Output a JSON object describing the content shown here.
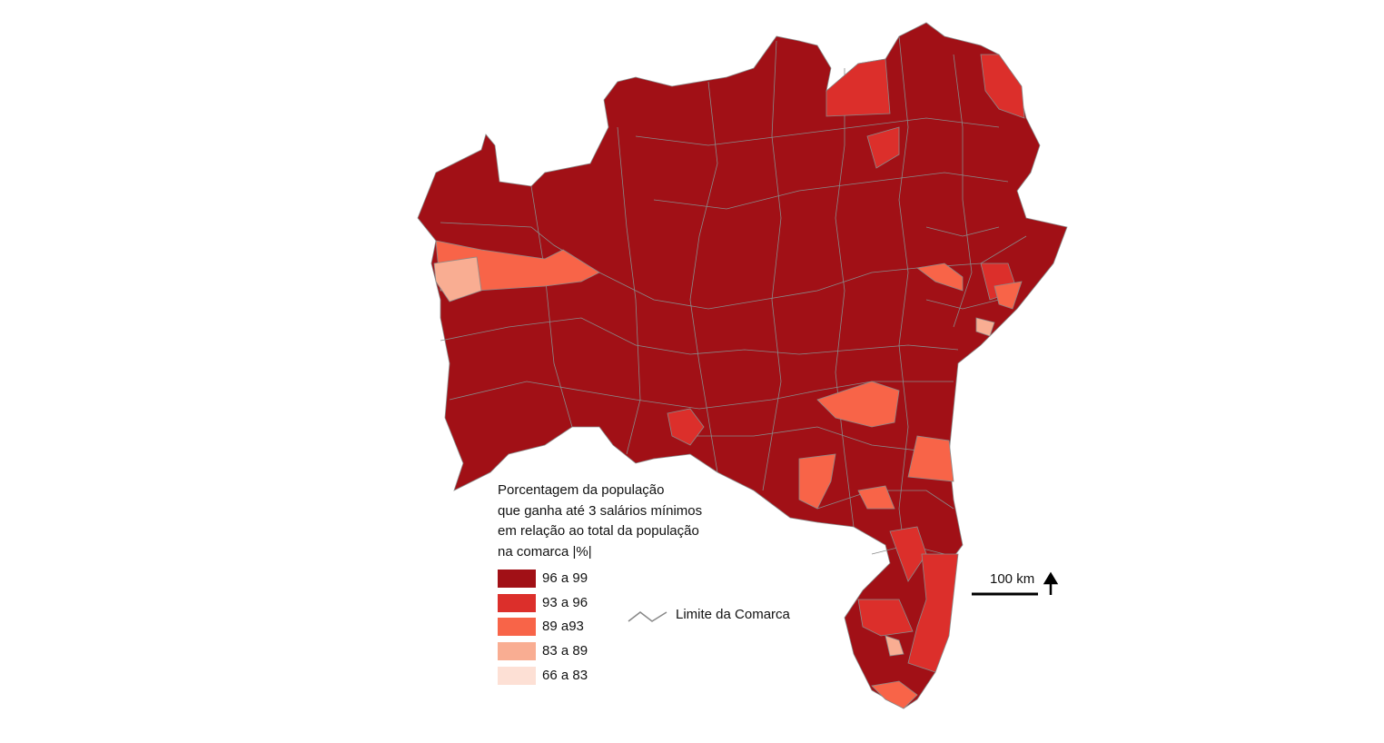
{
  "legend": {
    "title": [
      "Porcentagem da população",
      "que ganha até 3 salários mínimos",
      "em relação ao total da população",
      "na comarca |%|"
    ],
    "classes": [
      "96 a 99",
      "93 a 96",
      "89 a93",
      "83 a 89",
      "66 a 83"
    ],
    "boundary": "Limite da Comarca"
  },
  "scale_bar": {
    "label": "100 km"
  }
}
